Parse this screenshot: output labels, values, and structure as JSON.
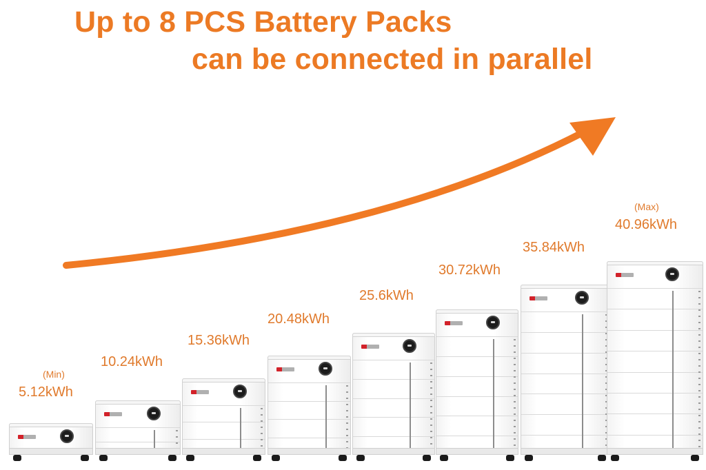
{
  "headline": {
    "line1": "Up to 8 PCS Battery Packs",
    "line2": "can be connected in parallel"
  },
  "accent_color": "#ec7a24",
  "arrow": {
    "icon": "growth-arrow-icon",
    "color": "#f07a24"
  },
  "units": [
    {
      "capacity": "5.12kWh",
      "tag": "(Min)",
      "modules": 1
    },
    {
      "capacity": "10.24kWh",
      "tag": "",
      "modules": 2
    },
    {
      "capacity": "15.36kWh",
      "tag": "",
      "modules": 3
    },
    {
      "capacity": "20.48kWh",
      "tag": "",
      "modules": 4
    },
    {
      "capacity": "25.6kWh",
      "tag": "",
      "modules": 5
    },
    {
      "capacity": "30.72kWh",
      "tag": "",
      "modules": 6
    },
    {
      "capacity": "35.84kWh",
      "tag": "",
      "modules": 7
    },
    {
      "capacity": "40.96kWh",
      "tag": "(Max)",
      "modules": 8
    }
  ]
}
